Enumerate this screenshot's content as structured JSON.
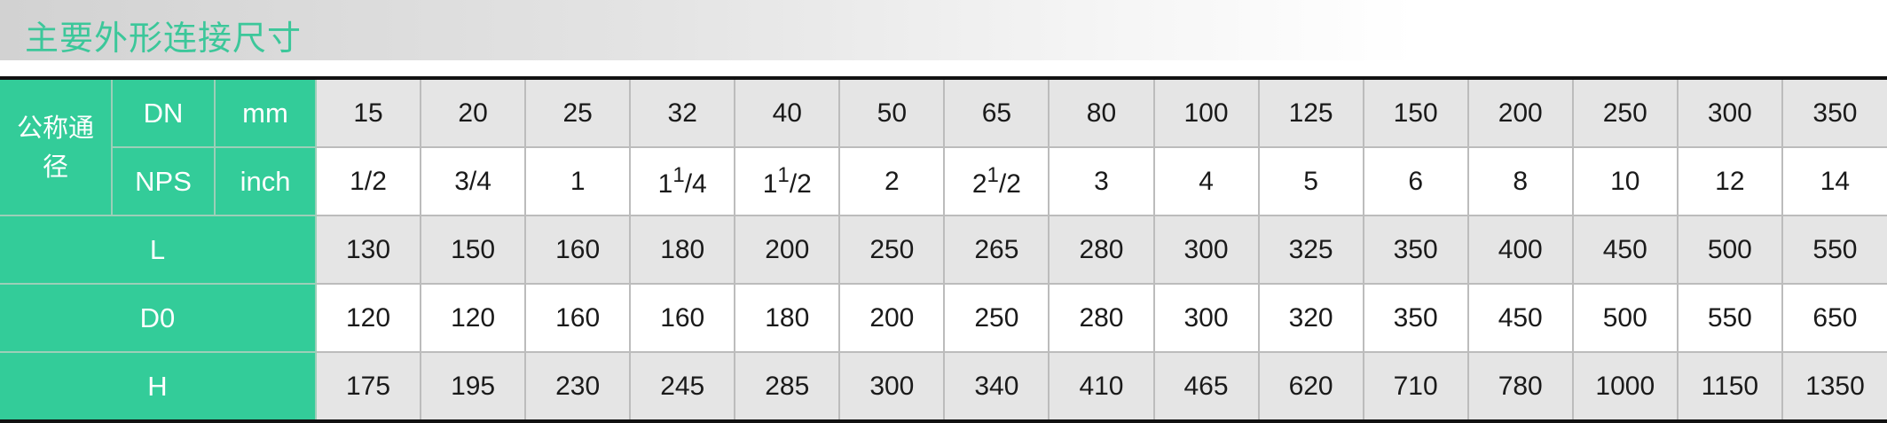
{
  "title": "主要外形连接尺寸",
  "labels": {
    "nominal": "公称通径",
    "dn": "DN",
    "mm": "mm",
    "nps": "NPS",
    "inch": "inch",
    "l": "L",
    "d0": "D0",
    "h": "H"
  },
  "colors": {
    "accent": "#33cc99",
    "title": "#3cc79a",
    "shaded_row": "#e5e5e5"
  },
  "dn": [
    "15",
    "20",
    "25",
    "32",
    "40",
    "50",
    "65",
    "80",
    "100",
    "125",
    "150",
    "200",
    "250",
    "300",
    "350"
  ],
  "nps": [
    {
      "whole": "1/2",
      "sup": "",
      "rest": ""
    },
    {
      "whole": "3/4",
      "sup": "",
      "rest": ""
    },
    {
      "whole": "1",
      "sup": "",
      "rest": ""
    },
    {
      "whole": "1",
      "sup": "1",
      "rest": "/4"
    },
    {
      "whole": "1",
      "sup": "1",
      "rest": "/2"
    },
    {
      "whole": "2",
      "sup": "",
      "rest": ""
    },
    {
      "whole": "2",
      "sup": "1",
      "rest": "/2"
    },
    {
      "whole": "3",
      "sup": "",
      "rest": ""
    },
    {
      "whole": "4",
      "sup": "",
      "rest": ""
    },
    {
      "whole": "5",
      "sup": "",
      "rest": ""
    },
    {
      "whole": "6",
      "sup": "",
      "rest": ""
    },
    {
      "whole": "8",
      "sup": "",
      "rest": ""
    },
    {
      "whole": "10",
      "sup": "",
      "rest": ""
    },
    {
      "whole": "12",
      "sup": "",
      "rest": ""
    },
    {
      "whole": "14",
      "sup": "",
      "rest": ""
    }
  ],
  "L": [
    "130",
    "150",
    "160",
    "180",
    "200",
    "250",
    "265",
    "280",
    "300",
    "325",
    "350",
    "400",
    "450",
    "500",
    "550"
  ],
  "D0": [
    "120",
    "120",
    "160",
    "160",
    "180",
    "200",
    "250",
    "280",
    "300",
    "320",
    "350",
    "450",
    "500",
    "550",
    "650"
  ],
  "H": [
    "175",
    "195",
    "230",
    "245",
    "285",
    "300",
    "340",
    "410",
    "465",
    "620",
    "710",
    "780",
    "1000",
    "1150",
    "1350"
  ]
}
